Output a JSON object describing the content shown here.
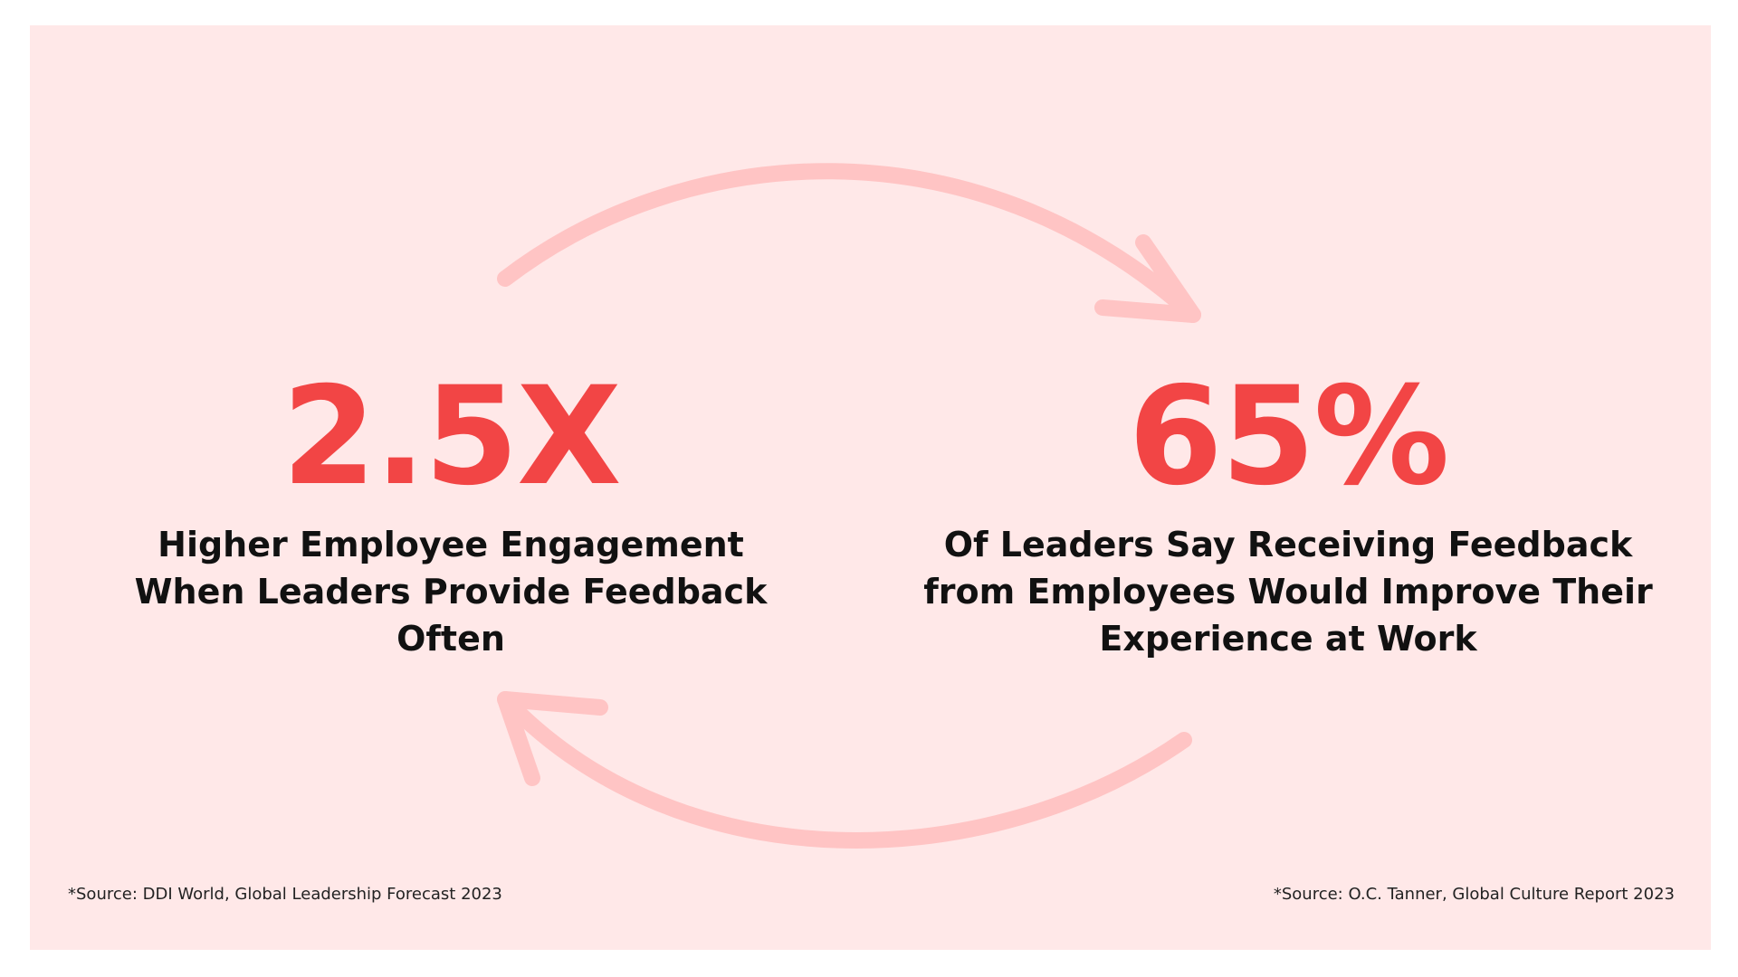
{
  "colors": {
    "background": "#ffe8e8",
    "accent": "#f24545",
    "arrow": "#ffc4c4",
    "text": "#111111"
  },
  "left_stat": {
    "value": "2.5X",
    "description": "Higher Employee Engagement When Leaders Provide Feedback Often",
    "source": "*Source: DDI World, Global Leadership Forecast 2023"
  },
  "right_stat": {
    "value": "65%",
    "description": "Of Leaders Say Receiving Feedback from Employees Would Improve Their Experience at Work",
    "source": "*Source: O.C. Tanner, Global Culture Report 2023"
  },
  "icons": {
    "top_arrow": "curved-arrow-right-icon",
    "bottom_arrow": "curved-arrow-left-icon"
  }
}
